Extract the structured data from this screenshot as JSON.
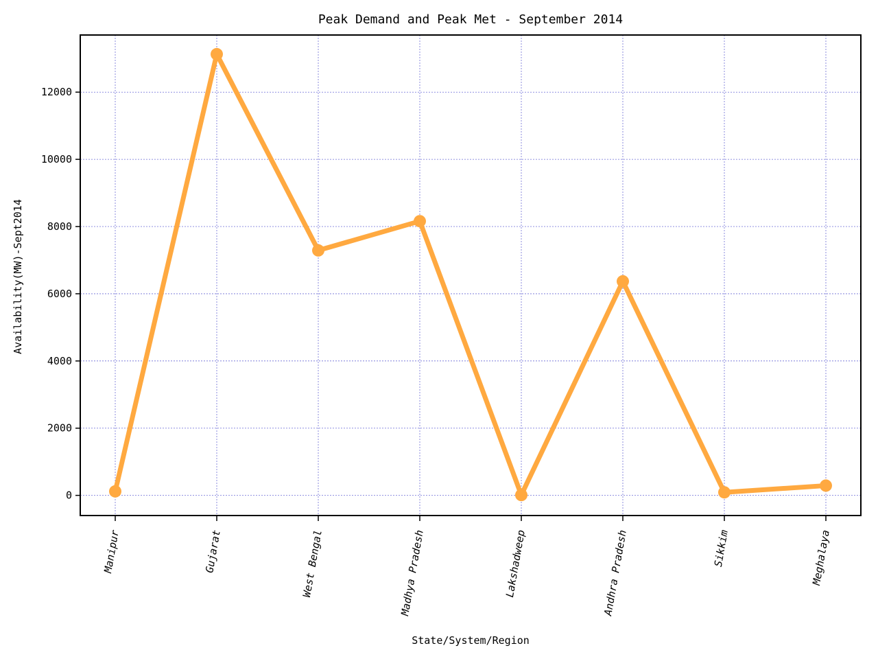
{
  "chart_data": {
    "type": "line",
    "title": "Peak Demand and Peak Met - September 2014",
    "xlabel": "State/System/Region",
    "ylabel": "Availability(MW)-Sept2014",
    "categories": [
      "Manipur",
      "Gujarat",
      "West Bengal",
      "Madhya Pradesh",
      "Lakshadweep",
      "Andhra Pradesh",
      "Sikkim",
      "Meghalaya"
    ],
    "series": [
      {
        "values": [
          120,
          13130,
          7290,
          8160,
          10,
          6370,
          90,
          290
        ],
        "color": "#ffa940"
      }
    ],
    "ylim": [
      -600,
      13700
    ],
    "yticks": [
      0,
      2000,
      4000,
      6000,
      8000,
      10000,
      12000
    ],
    "grid": true,
    "grid_color": "#6b6bd6",
    "legend": "none"
  }
}
